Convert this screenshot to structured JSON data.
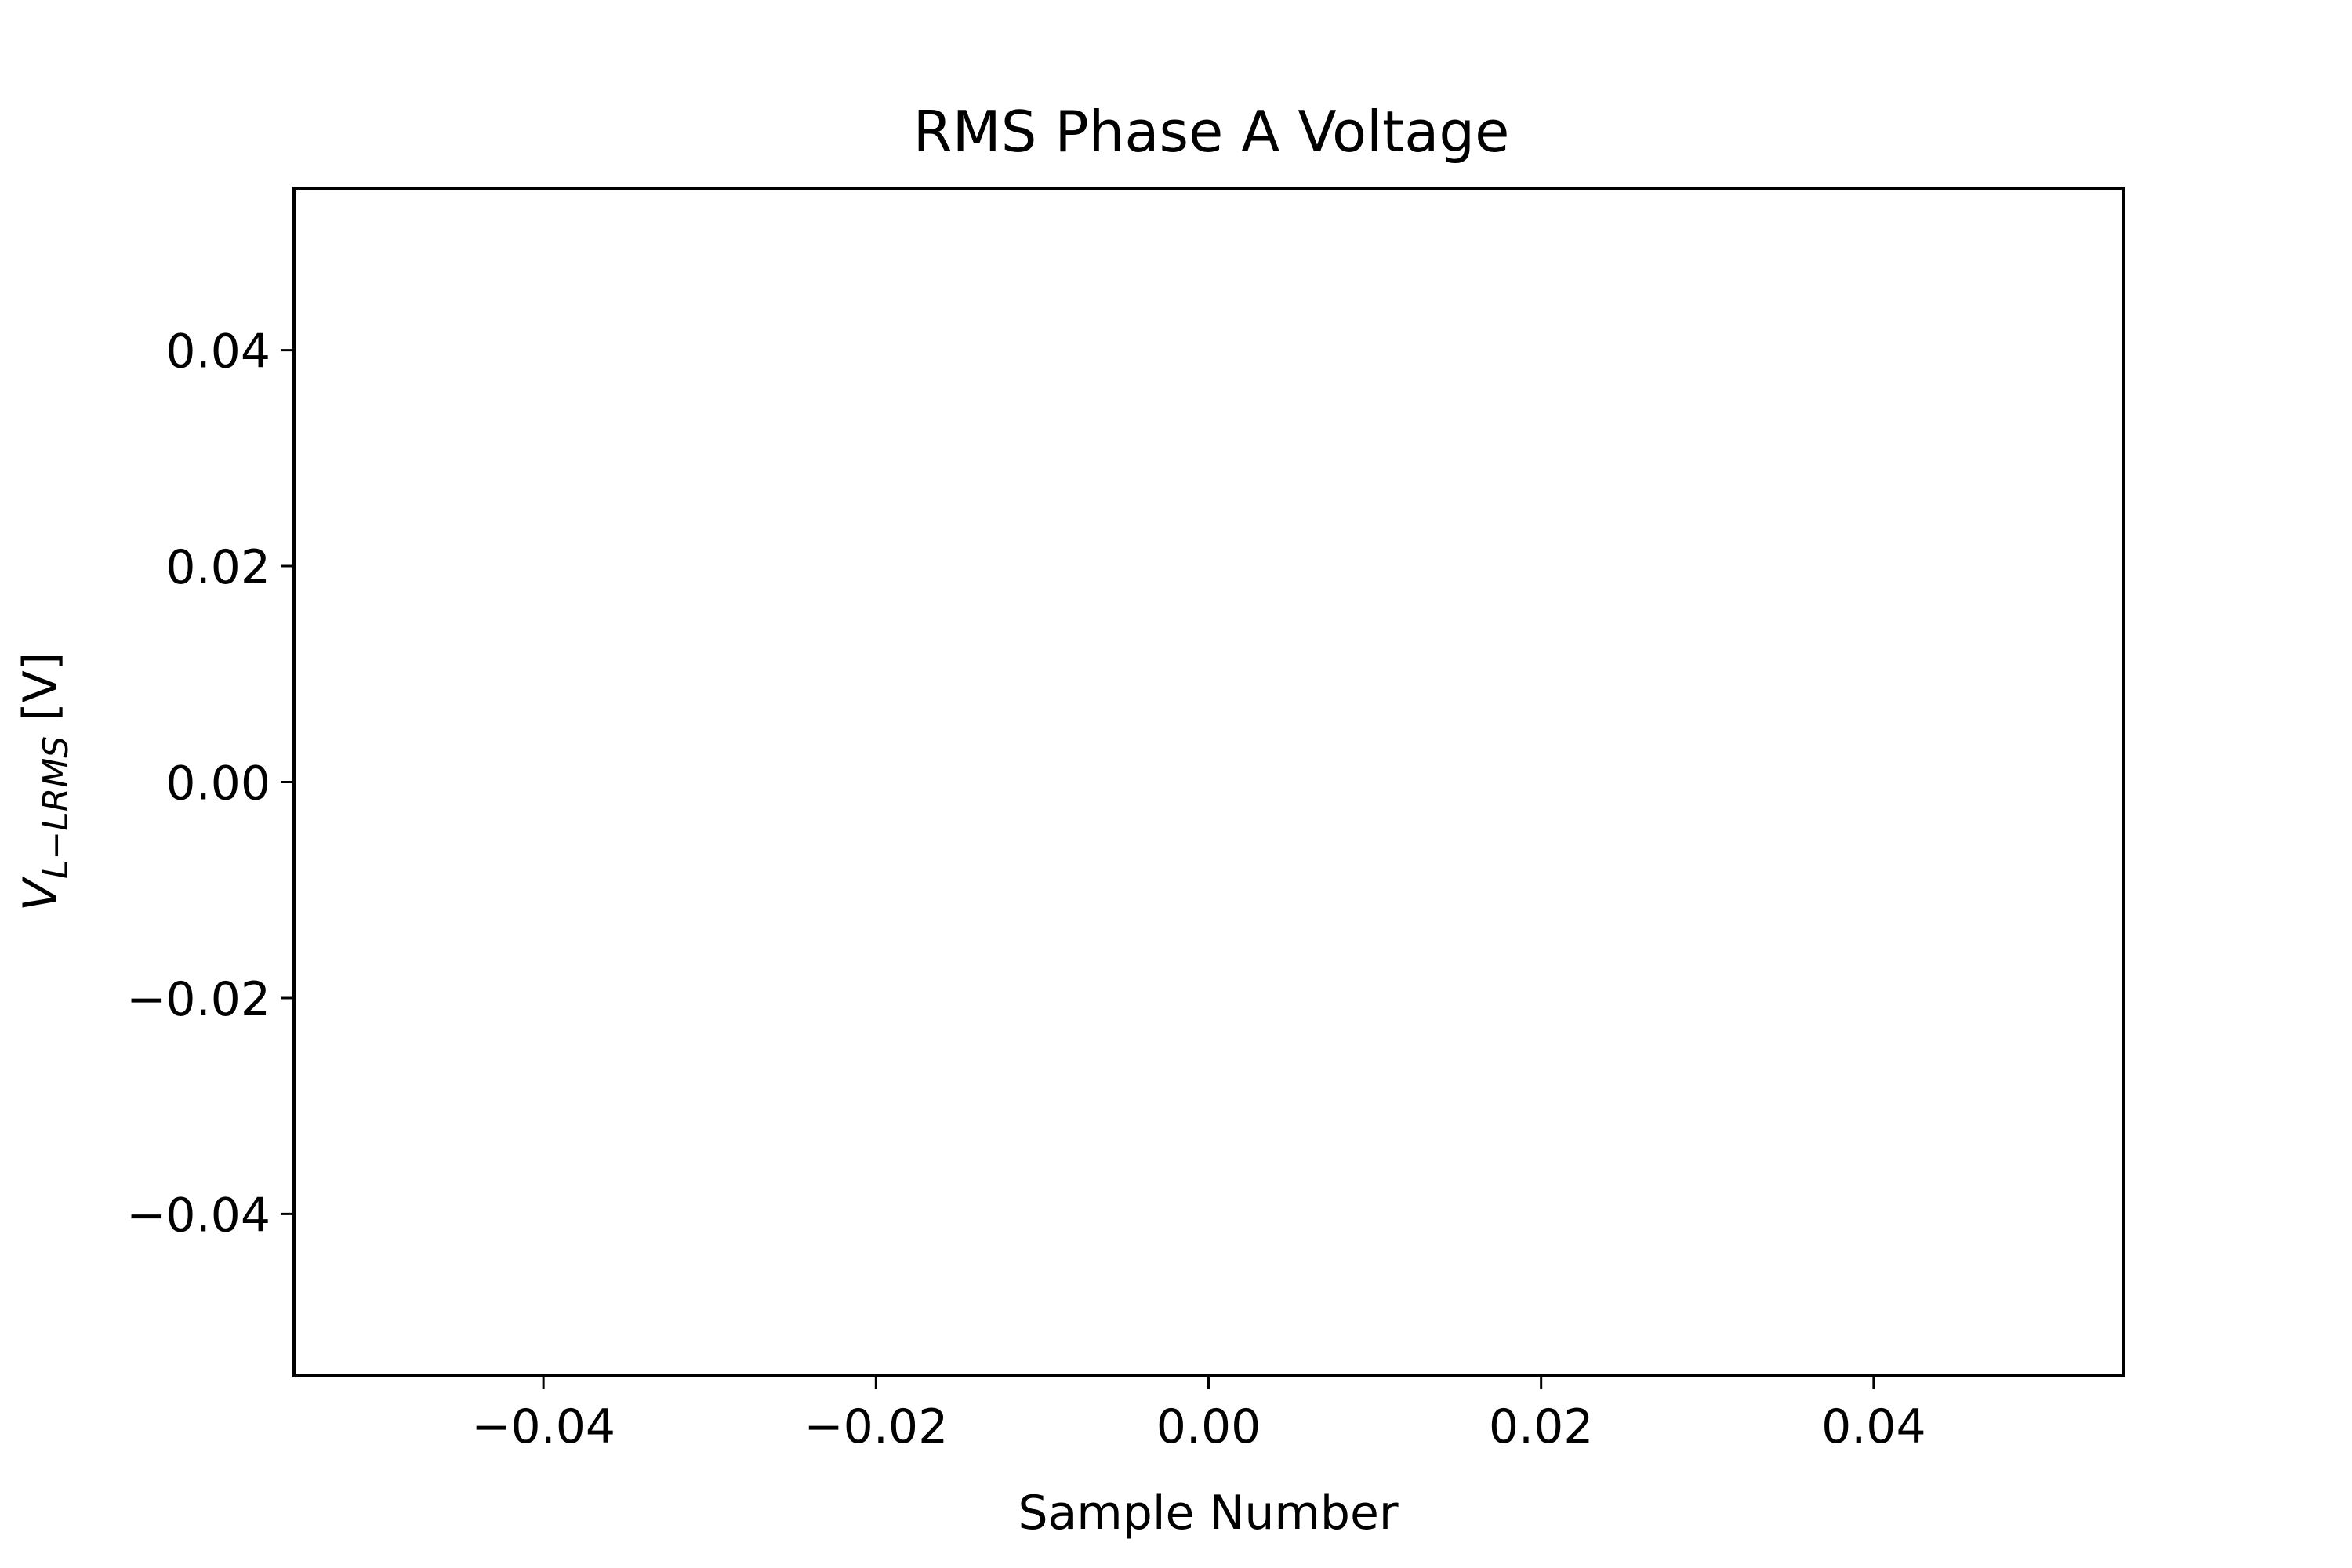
{
  "chart_data": {
    "type": "line",
    "title": "RMS Phase A Voltage",
    "xlabel": "Sample Number",
    "ylabel": {
      "main": "V",
      "subscript": "L−LRMS",
      "unit": "[V]"
    },
    "xlim": [
      -0.055,
      0.055
    ],
    "ylim": [
      -0.055,
      0.055
    ],
    "xticks": [
      {
        "value": -0.04,
        "label": "−0.04"
      },
      {
        "value": -0.02,
        "label": "−0.02"
      },
      {
        "value": 0.0,
        "label": "0.00"
      },
      {
        "value": 0.02,
        "label": "0.02"
      },
      {
        "value": 0.04,
        "label": "0.04"
      }
    ],
    "yticks": [
      {
        "value": -0.04,
        "label": "−0.04"
      },
      {
        "value": -0.02,
        "label": "−0.02"
      },
      {
        "value": 0.0,
        "label": "0.00"
      },
      {
        "value": 0.02,
        "label": "0.02"
      },
      {
        "value": 0.04,
        "label": "0.04"
      }
    ],
    "series": [],
    "grid": false
  }
}
